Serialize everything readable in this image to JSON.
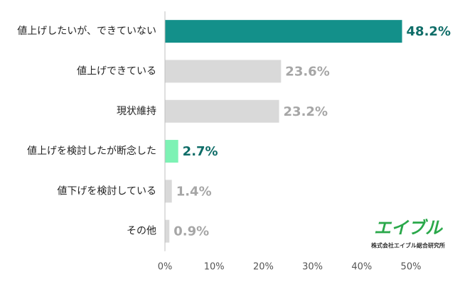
{
  "chart_data": {
    "type": "bar",
    "orientation": "horizontal",
    "categories": [
      "値上げしたいが、できていない",
      "値上げできている",
      "現状維持",
      "値上げを検討したが断念した",
      "値下げを検討している",
      "その他"
    ],
    "values": [
      48.2,
      23.6,
      23.2,
      2.7,
      1.4,
      0.9
    ],
    "value_labels": [
      "48.2%",
      "23.6%",
      "23.2%",
      "2.7%",
      "1.4%",
      "0.9%"
    ],
    "colors": [
      "#13908a",
      "#d9d9d9",
      "#d9d9d9",
      "#7df2b4",
      "#d9d9d9",
      "#d9d9d9"
    ],
    "label_colors": [
      "#0f6d68",
      "#a6a6a6",
      "#a6a6a6",
      "#0f6d68",
      "#a6a6a6",
      "#a6a6a6"
    ],
    "xlim": [
      0,
      50
    ],
    "xticks": [
      {
        "value": 0,
        "label": "0%"
      },
      {
        "value": 10,
        "label": "10%"
      },
      {
        "value": 20,
        "label": "20%"
      },
      {
        "value": 30,
        "label": "30%"
      },
      {
        "value": 40,
        "label": "40%"
      },
      {
        "value": 50,
        "label": "50%"
      }
    ],
    "logo": {
      "mark": "エイブル",
      "company": "株式会社エイブル総合研究所"
    }
  }
}
